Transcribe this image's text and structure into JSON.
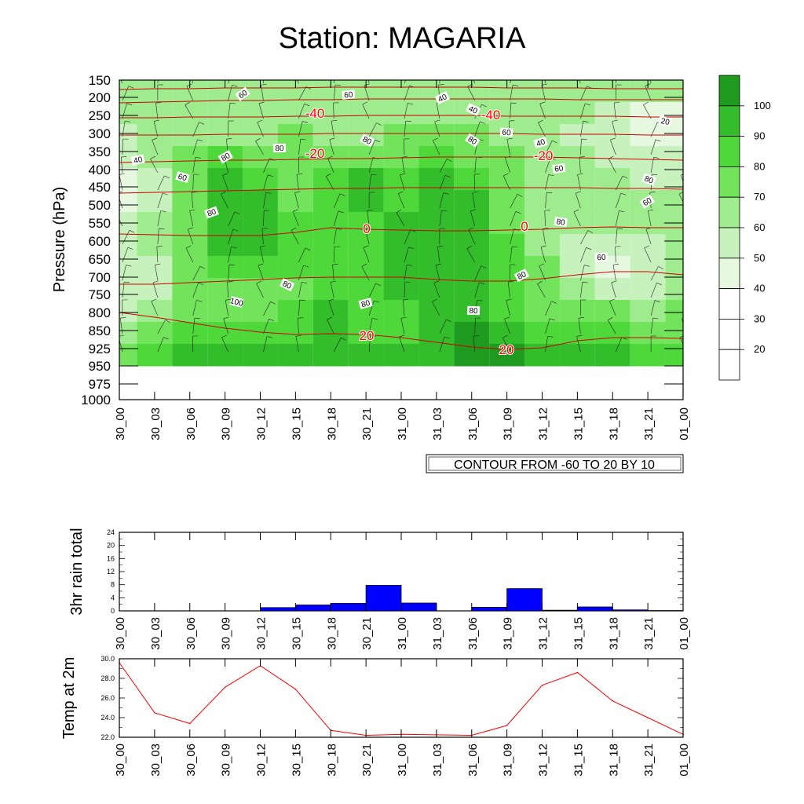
{
  "title": "Station: MAGARIA",
  "time_labels": [
    "30_00",
    "30_03",
    "30_06",
    "30_09",
    "30_12",
    "30_15",
    "30_18",
    "30_21",
    "31_00",
    "31_03",
    "31_06",
    "31_09",
    "31_12",
    "31_15",
    "31_18",
    "31_21",
    "01_00"
  ],
  "colors": {
    "green_levels": [
      "#ffffff",
      "#e6f8e0",
      "#c8f2bd",
      "#9eec8e",
      "#72e45c",
      "#4fd83a",
      "#33bd2a",
      "#1e9a1e"
    ],
    "temp_line": "#ff0000",
    "isotherm": "#cc0000",
    "isotherm_label": "#ff0000",
    "rain_bar": "#0000ff"
  },
  "chart_data": [
    {
      "type": "heatmap",
      "name": "cross-section",
      "ylabel": "Pressure (hPa)",
      "y_ticks": [
        "150",
        "200",
        "250",
        "300",
        "350",
        "400",
        "450",
        "500",
        "550",
        "600",
        "650",
        "700",
        "750",
        "800",
        "850",
        "925",
        "950",
        "975",
        "1000"
      ],
      "info_box": "CONTOUR FROM -60 TO 20 BY 10",
      "colorbar_labels": [
        "100",
        "90",
        "80",
        "70",
        "60",
        "50",
        "40",
        "30",
        "20"
      ],
      "contour_labels": [
        "60",
        "60",
        "40",
        "40",
        "20",
        "80",
        "80",
        "80",
        "40",
        "60",
        "40",
        "60",
        "80",
        "60",
        "80",
        "80",
        "80",
        "60",
        "60",
        "80",
        "80",
        "100",
        "80",
        "80"
      ],
      "isotherm_labels": [
        "-40",
        "-40",
        "-20",
        "-20",
        "0",
        "0",
        "20",
        "20"
      ],
      "humidity_grid": [
        [
          3,
          3,
          3,
          3,
          3,
          3,
          3,
          3,
          3,
          3,
          3,
          3,
          3,
          3,
          3,
          3,
          3
        ],
        [
          3,
          3,
          3,
          3,
          3,
          3,
          3,
          3,
          3,
          3,
          3,
          3,
          3,
          3,
          2,
          1,
          1
        ],
        [
          2,
          3,
          3,
          3,
          3,
          4,
          3,
          3,
          4,
          4,
          4,
          3,
          3,
          2,
          2,
          1,
          1
        ],
        [
          2,
          3,
          4,
          5,
          4,
          4,
          4,
          4,
          4,
          5,
          4,
          4,
          3,
          3,
          2,
          2,
          2
        ],
        [
          1,
          2,
          4,
          6,
          5,
          4,
          5,
          6,
          5,
          6,
          5,
          4,
          3,
          3,
          3,
          2,
          2
        ],
        [
          1,
          2,
          4,
          6,
          6,
          4,
          5,
          6,
          5,
          6,
          6,
          4,
          3,
          3,
          3,
          3,
          3
        ],
        [
          2,
          3,
          4,
          6,
          6,
          5,
          5,
          5,
          6,
          6,
          6,
          4,
          3,
          3,
          3,
          3,
          3
        ],
        [
          2,
          3,
          4,
          6,
          6,
          5,
          5,
          5,
          6,
          6,
          6,
          5,
          3,
          2,
          2,
          2,
          3
        ],
        [
          2,
          2,
          4,
          5,
          5,
          5,
          5,
          5,
          6,
          6,
          6,
          5,
          4,
          2,
          1,
          2,
          3
        ],
        [
          2,
          2,
          4,
          4,
          4,
          4,
          5,
          5,
          6,
          6,
          6,
          5,
          4,
          3,
          2,
          2,
          3
        ],
        [
          2,
          3,
          4,
          4,
          4,
          5,
          6,
          5,
          5,
          6,
          6,
          5,
          4,
          4,
          4,
          3,
          4
        ],
        [
          3,
          4,
          5,
          5,
          5,
          5,
          6,
          5,
          5,
          6,
          7,
          6,
          5,
          5,
          5,
          4,
          4
        ],
        [
          4,
          5,
          6,
          6,
          6,
          6,
          6,
          6,
          6,
          6,
          7,
          7,
          6,
          6,
          6,
          5,
          5
        ]
      ]
    },
    {
      "type": "bar",
      "name": "rain",
      "ylabel": "3hr rain total",
      "y_ticks": [
        "24",
        "20",
        "16",
        "12",
        "8",
        "4",
        "0"
      ],
      "ylim": [
        0,
        24
      ],
      "values": [
        0,
        0,
        0,
        0,
        1.0,
        1.8,
        2.3,
        7.8,
        2.4,
        0,
        1.1,
        6.8,
        0.2,
        1.2,
        0.3,
        0.1
      ]
    },
    {
      "type": "line",
      "name": "temperature",
      "ylabel": "Temp at 2m",
      "y_ticks": [
        "30.0",
        "28.0",
        "26.0",
        "24.0",
        "22.0"
      ],
      "ylim": [
        22,
        30
      ],
      "values": [
        29.6,
        24.5,
        23.4,
        27.1,
        29.3,
        26.9,
        22.7,
        22.2,
        22.3,
        22.25,
        22.2,
        23.2,
        27.3,
        28.6,
        25.7,
        24.0,
        22.3
      ]
    }
  ]
}
